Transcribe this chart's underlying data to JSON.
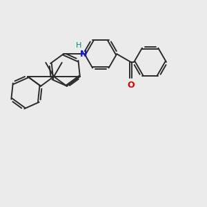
{
  "background_color": "#ebebeb",
  "bond_color": "#2a2a2a",
  "bond_width": 1.4,
  "N_color": "#1515e0",
  "O_color": "#dd0000",
  "H_color": "#008888",
  "font_size_N": 9,
  "font_size_H": 8,
  "font_size_O": 9,
  "figure_size": [
    3.0,
    3.0
  ],
  "dpi": 100,
  "xlim": [
    -4.5,
    5.5
  ],
  "ylim": [
    -3.5,
    3.5
  ]
}
